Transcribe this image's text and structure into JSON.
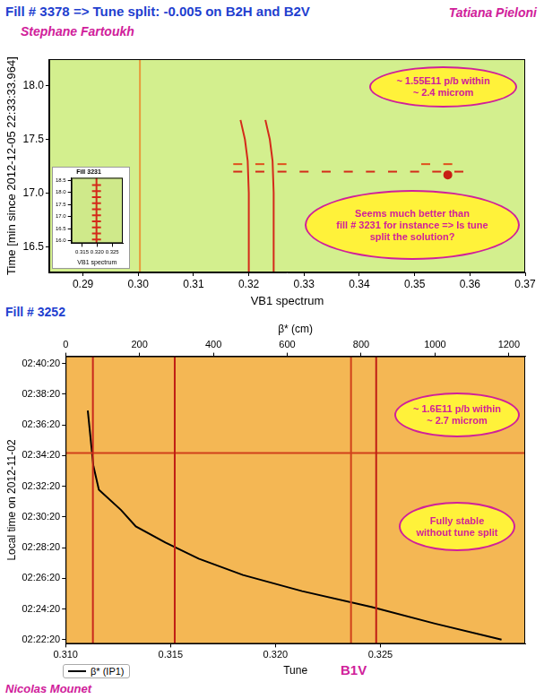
{
  "chart_data": [
    {
      "type": "scatter",
      "title": "Fill # 3378 => Tune split: -0.005 on B2H and B2V",
      "authors": [
        "Tatiana Pieloni",
        "Stephane Fartoukh"
      ],
      "xlabel": "VB1 spectrum",
      "ylabel": "Time [min since 2012-12-05 22:33:33.964]",
      "xlim": [
        0.2839,
        0.37
      ],
      "xticks": [
        0.29,
        {
          "value": 0.3,
          "label": "0.30"
        },
        0.31,
        0.32,
        0.33,
        0.34,
        0.35,
        0.36,
        0.37
      ],
      "ylim": [
        16.264,
        18.245
      ],
      "yticks": [
        16.5,
        {
          "value": 17,
          "label": "17.0"
        },
        17.5,
        {
          "value": 18,
          "label": "18.0"
        }
      ],
      "grid": false,
      "series": [
        {
          "color": "#e89a3c",
          "line_style": "solid",
          "marker": "none",
          "x": [
            0.3003,
            0.3003
          ],
          "values": [
            16.264,
            18.245
          ]
        },
        {
          "color": "#d42a1a",
          "line_style": "solid",
          "marker": "none",
          "x": [
            0.3185,
            0.3193,
            0.3198,
            0.32,
            0.32
          ],
          "values": [
            17.68,
            17.5,
            17.3,
            17.0,
            16.264
          ]
        },
        {
          "color": "#d42a1a",
          "line_style": "solid",
          "marker": "none",
          "x": [
            0.323,
            0.3238,
            0.3243,
            0.3245,
            0.3245
          ],
          "values": [
            17.68,
            17.5,
            17.3,
            17.0,
            16.264
          ]
        },
        {
          "color": "#d42a1a",
          "line_style": "none",
          "marker": "dash",
          "x": [
            0.318,
            0.322,
            0.326,
            0.33,
            0.334,
            0.338,
            0.342,
            0.346,
            0.35,
            0.354,
            0.358
          ],
          "values": [
            17.2,
            17.2,
            17.2,
            17.2,
            17.2,
            17.2,
            17.2,
            17.2,
            17.2,
            17.2,
            17.2
          ]
        },
        {
          "color": "#e0501c",
          "line_style": "none",
          "marker": "dash",
          "x": [
            0.318,
            0.322,
            0.326,
            0.352,
            0.356
          ],
          "values": [
            17.27,
            17.27,
            17.27,
            17.27,
            17.27
          ]
        },
        {
          "color": "#c81e14",
          "line_style": "none",
          "marker": "circle",
          "x": [
            0.356
          ],
          "values": [
            17.17
          ]
        }
      ],
      "annotations": [
        [
          "~ 1.55E11 p/b within",
          "~ 2.4 microm"
        ],
        [
          "Seems much better than",
          "fill # 3231 for instance => Is tune",
          "split the solution?"
        ]
      ]
    },
    {
      "type": "scatter",
      "title": "Fill 3231",
      "xlabel": "VB1 spectrum",
      "xlim": [
        0.3115,
        0.3285
      ],
      "xticks": [
        0.315,
        {
          "value": 0.32,
          "label": "0.320"
        },
        0.325
      ],
      "ylim": [
        15.9,
        18.6
      ],
      "yticks": [
        {
          "value": 16,
          "label": "16.0"
        },
        16.5,
        {
          "value": 17,
          "label": "17.0"
        },
        17.5,
        {
          "value": 18,
          "label": "18.0"
        },
        18.5
      ],
      "grid": false,
      "series": [
        {
          "color": "#d42a1a",
          "line_style": "solid",
          "marker": "none",
          "x": [
            0.3198,
            0.3198
          ],
          "values": [
            15.9,
            18.6
          ]
        },
        {
          "color": "#d42a1a",
          "line_style": "none",
          "marker": "dash",
          "x": [
            0.3198,
            0.3198,
            0.3198,
            0.3198,
            0.3198,
            0.3198,
            0.3198,
            0.3198,
            0.3198,
            0.3198
          ],
          "values": [
            16.05,
            16.3,
            16.55,
            16.8,
            17.05,
            17.3,
            17.55,
            17.8,
            18.05,
            18.3
          ]
        }
      ]
    },
    {
      "type": "scatter",
      "title": "Fill # 3252",
      "authors": [
        "Nicolas Mounet"
      ],
      "label": "B1V",
      "xlabel": "Tune",
      "x2label": "β* (cm)",
      "ylabel": "Local time on 2012-11-02",
      "xlim": [
        0.31,
        0.3319
      ],
      "xticks": [
        {
          "value": 0.31,
          "label": "0.310"
        },
        0.315,
        {
          "value": 0.32,
          "label": "0.320"
        },
        0.325
      ],
      "x2lim": [
        0,
        1244
      ],
      "x2ticks": [
        0,
        200,
        400,
        600,
        800,
        1000,
        1200
      ],
      "ylim": [
        8524,
        9648
      ],
      "yticks": [
        {
          "value": 8540,
          "label": "02:22:20"
        },
        {
          "value": 8660,
          "label": "02:24:20"
        },
        {
          "value": 8780,
          "label": "02:26:20"
        },
        {
          "value": 8900,
          "label": "02:28:20"
        },
        {
          "value": 9020,
          "label": "02:30:20"
        },
        {
          "value": 9140,
          "label": "02:32:20"
        },
        {
          "value": 9260,
          "label": "02:34:20"
        },
        {
          "value": 9380,
          "label": "02:36:20"
        },
        {
          "value": 9500,
          "label": "02:38:20"
        },
        {
          "value": 9620,
          "label": "02:40:20"
        }
      ],
      "grid": false,
      "legend": "lower left",
      "series": [
        {
          "color": "#c8281c",
          "line_style": "solid",
          "marker": "none",
          "x": [
            0.3113,
            0.3113
          ],
          "values": [
            8524,
            9648
          ]
        },
        {
          "color": "#c01e14",
          "line_style": "solid",
          "marker": "none",
          "x": [
            0.3152,
            0.3152
          ],
          "values": [
            8524,
            9648
          ]
        },
        {
          "color": "#d0401a",
          "line_style": "solid",
          "marker": "none",
          "x": [
            0.3236,
            0.3236
          ],
          "values": [
            8524,
            9648
          ]
        },
        {
          "color": "#c01e14",
          "line_style": "solid",
          "marker": "none",
          "x": [
            0.3248,
            0.3248
          ],
          "values": [
            8524,
            9648
          ]
        },
        {
          "color": "#d0401a",
          "line_style": "solid",
          "marker": "none",
          "x": [
            0.31,
            0.3319
          ],
          "values": [
            9270,
            9270
          ]
        },
        {
          "name": "β* (IP1)",
          "color": "#000000",
          "line_style": "solid",
          "marker": "none",
          "axis": "x2",
          "x": [
            60,
            75,
            90,
            150,
            190,
            270,
            360,
            480,
            640,
            830,
            1000,
            1180
          ],
          "values": [
            9436,
            9221,
            9126,
            9047,
            8983,
            8920,
            8857,
            8793,
            8730,
            8667,
            8603,
            8540
          ]
        }
      ],
      "annotations": [
        [
          "~ 1.6E11 p/b within",
          "~ 2.7 microm"
        ],
        [
          "Fully stable",
          "without tune split"
        ]
      ]
    }
  ]
}
